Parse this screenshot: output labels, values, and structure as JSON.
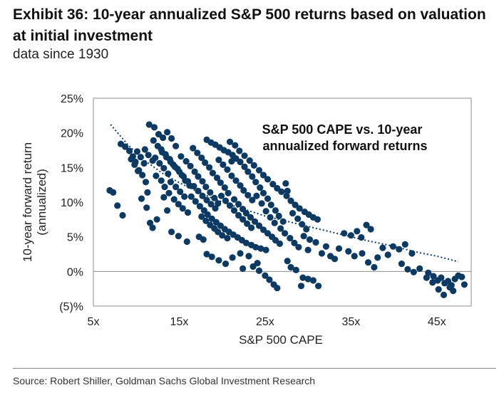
{
  "header": {
    "title": "Exhibit 36: 10-year annualized S&P 500 returns based on valuation at initial investment",
    "subtitle": "data since 1930"
  },
  "footer": {
    "source": "Source: Robert Shiller, Goldman Sachs Global Investment Research"
  },
  "colors": {
    "points": "#0d3a63",
    "trendline": "#0d3a63",
    "axis": "#7f7f7f",
    "zero_line": "#7f7f7f"
  },
  "chart_data": {
    "type": "scatter",
    "title": "",
    "annotation": [
      "S&P 500 CAPE vs. 10-year",
      "annualized forward returns"
    ],
    "xlabel": "S&P 500 CAPE",
    "ylabel": [
      "10-year forward return",
      "(annualized)"
    ],
    "xlim": [
      5,
      49
    ],
    "ylim": [
      -5,
      25
    ],
    "x_ticks": [
      5,
      15,
      25,
      35,
      45
    ],
    "x_tick_labels": [
      "5x",
      "15x",
      "25x",
      "35x",
      "45x"
    ],
    "y_ticks": [
      -5,
      0,
      5,
      10,
      15,
      20,
      25
    ],
    "y_tick_labels": [
      "(5)%",
      "0%",
      "5%",
      "10%",
      "15%",
      "20%",
      "25%"
    ],
    "grid": false,
    "legend": "none",
    "trendline": {
      "style": "dotted",
      "x": [
        7.0,
        9,
        11,
        13,
        15,
        17,
        19,
        21,
        23,
        25,
        27,
        29,
        31,
        33,
        35,
        37,
        39,
        41,
        43,
        45,
        47.5
      ],
      "y": [
        21.2,
        18.3,
        16.0,
        14.2,
        12.8,
        11.6,
        10.5,
        9.6,
        8.8,
        8.0,
        7.4,
        6.8,
        6.2,
        5.6,
        5.0,
        4.4,
        3.9,
        3.3,
        2.7,
        2.2,
        1.4
      ]
    },
    "series": [
      {
        "points": [
          [
            6.9,
            11.7
          ],
          [
            7.3,
            11.4
          ],
          [
            7.8,
            9.5
          ],
          [
            8.4,
            8.1
          ],
          [
            8.2,
            18.4
          ],
          [
            8.7,
            18.0
          ],
          [
            9.2,
            17.4
          ],
          [
            9.6,
            16.6
          ],
          [
            9.9,
            15.8
          ],
          [
            10.3,
            14.6
          ],
          [
            10.7,
            13.9
          ],
          [
            11.1,
            12.9
          ],
          [
            11.3,
            11.4
          ],
          [
            10.6,
            10.5
          ],
          [
            11.2,
            9.2
          ],
          [
            11.6,
            7.0
          ],
          [
            11.9,
            6.3
          ],
          [
            12.4,
            7.5
          ],
          [
            11.5,
            21.2
          ],
          [
            12.1,
            20.8
          ],
          [
            12.6,
            19.8
          ],
          [
            13.1,
            19.3
          ],
          [
            13.6,
            20.1
          ],
          [
            14.1,
            19.2
          ],
          [
            14.6,
            18.1
          ],
          [
            12.9,
            17.6
          ],
          [
            13.4,
            16.9
          ],
          [
            13.9,
            16.2
          ],
          [
            14.3,
            15.4
          ],
          [
            14.8,
            14.8
          ],
          [
            15.3,
            13.9
          ],
          [
            15.7,
            13.1
          ],
          [
            16.2,
            12.4
          ],
          [
            12.2,
            16.4
          ],
          [
            12.7,
            15.6
          ],
          [
            13.2,
            14.9
          ],
          [
            13.7,
            14.1
          ],
          [
            12.3,
            13.8
          ],
          [
            12.9,
            13.1
          ],
          [
            13.3,
            12.2
          ],
          [
            13.8,
            11.3
          ],
          [
            14.4,
            10.4
          ],
          [
            14.9,
            9.7
          ],
          [
            15.4,
            9.1
          ],
          [
            16.0,
            8.5
          ],
          [
            13.6,
            8.8
          ],
          [
            14.1,
            5.7
          ],
          [
            14.9,
            5.1
          ],
          [
            15.9,
            4.3
          ],
          [
            15.2,
            16.6
          ],
          [
            15.8,
            15.9
          ],
          [
            16.3,
            15.2
          ],
          [
            16.8,
            14.4
          ],
          [
            17.2,
            13.7
          ],
          [
            17.7,
            13.0
          ],
          [
            18.1,
            12.2
          ],
          [
            18.6,
            11.4
          ],
          [
            19.1,
            10.6
          ],
          [
            19.5,
            9.8
          ],
          [
            16.6,
            17.8
          ],
          [
            17.1,
            17.1
          ],
          [
            17.6,
            16.4
          ],
          [
            18.0,
            15.7
          ],
          [
            18.5,
            15.0
          ],
          [
            18.9,
            14.2
          ],
          [
            19.4,
            13.5
          ],
          [
            19.8,
            12.8
          ],
          [
            20.3,
            12.1
          ],
          [
            20.7,
            11.3
          ],
          [
            18.2,
            19.0
          ],
          [
            18.7,
            18.6
          ],
          [
            19.2,
            18.3
          ],
          [
            19.7,
            17.9
          ],
          [
            20.2,
            17.5
          ],
          [
            20.7,
            17.2
          ],
          [
            21.2,
            16.8
          ],
          [
            21.6,
            16.3
          ],
          [
            22.1,
            15.8
          ],
          [
            22.6,
            15.1
          ],
          [
            23.0,
            14.4
          ],
          [
            23.5,
            13.7
          ],
          [
            23.9,
            12.9
          ],
          [
            24.4,
            12.1
          ],
          [
            24.8,
            11.3
          ],
          [
            25.3,
            10.5
          ],
          [
            25.7,
            9.6
          ],
          [
            26.2,
            8.8
          ],
          [
            26.6,
            8.0
          ],
          [
            27.1,
            7.2
          ],
          [
            20.9,
            18.7
          ],
          [
            21.5,
            18.2
          ],
          [
            22.0,
            17.4
          ],
          [
            22.6,
            16.7
          ],
          [
            23.2,
            16.0
          ],
          [
            23.7,
            15.3
          ],
          [
            24.3,
            14.6
          ],
          [
            24.8,
            13.9
          ],
          [
            25.3,
            13.3
          ],
          [
            25.9,
            12.6
          ],
          [
            26.4,
            12.0
          ],
          [
            26.9,
            11.5
          ],
          [
            27.5,
            10.9
          ],
          [
            28.0,
            10.2
          ],
          [
            28.5,
            9.6
          ],
          [
            29.0,
            9.1
          ],
          [
            29.6,
            8.6
          ],
          [
            30.1,
            8.2
          ],
          [
            30.6,
            7.8
          ],
          [
            31.1,
            7.5
          ],
          [
            27.4,
            12.7
          ],
          [
            27.6,
            11.6
          ],
          [
            28.2,
            8.4
          ],
          [
            28.8,
            7.6
          ],
          [
            29.3,
            6.8
          ],
          [
            29.8,
            6.1
          ],
          [
            16.4,
            10.8
          ],
          [
            16.9,
            10.1
          ],
          [
            17.4,
            9.4
          ],
          [
            17.9,
            8.8
          ],
          [
            18.3,
            8.2
          ],
          [
            18.8,
            7.6
          ],
          [
            19.3,
            7.1
          ],
          [
            19.8,
            6.6
          ],
          [
            20.3,
            6.1
          ],
          [
            20.8,
            5.7
          ],
          [
            21.3,
            5.3
          ],
          [
            21.8,
            4.9
          ],
          [
            22.3,
            4.5
          ],
          [
            22.8,
            4.1
          ],
          [
            23.4,
            3.8
          ],
          [
            23.9,
            3.5
          ],
          [
            24.5,
            3.3
          ],
          [
            25.1,
            3.1
          ],
          [
            17.6,
            7.9
          ],
          [
            18.1,
            7.3
          ],
          [
            18.6,
            6.7
          ],
          [
            19.1,
            6.2
          ],
          [
            19.5,
            5.7
          ],
          [
            20.0,
            5.2
          ],
          [
            20.6,
            4.8
          ],
          [
            17.3,
            5.0
          ],
          [
            17.8,
            4.6
          ],
          [
            18.2,
            2.5
          ],
          [
            18.8,
            2.1
          ],
          [
            19.6,
            1.6
          ],
          [
            20.4,
            1.1
          ],
          [
            21.2,
            2.0
          ],
          [
            22.1,
            2.6
          ],
          [
            23.1,
            2.2
          ],
          [
            24.1,
            1.2
          ],
          [
            25.0,
            -0.6
          ],
          [
            25.5,
            -1.2
          ],
          [
            26.0,
            -1.9
          ],
          [
            26.4,
            -2.4
          ],
          [
            23.6,
            0.7
          ],
          [
            24.3,
            0.1
          ],
          [
            22.4,
            0.4
          ],
          [
            27.6,
            1.5
          ],
          [
            28.0,
            0.6
          ],
          [
            28.6,
            0.2
          ],
          [
            29.4,
            -0.9
          ],
          [
            30.0,
            -1.1
          ],
          [
            29.2,
            -2.1
          ],
          [
            30.6,
            -1.3
          ],
          [
            31.2,
            -2.1
          ],
          [
            30.0,
            3.1
          ],
          [
            30.9,
            4.2
          ],
          [
            31.6,
            2.6
          ],
          [
            32.1,
            3.6
          ],
          [
            32.6,
            2.2
          ],
          [
            33.1,
            1.8
          ],
          [
            33.6,
            3.3
          ],
          [
            34.2,
            5.5
          ],
          [
            35.0,
            5.2
          ],
          [
            35.7,
            5.8
          ],
          [
            36.2,
            4.9
          ],
          [
            36.8,
            6.7
          ],
          [
            37.3,
            6.1
          ],
          [
            34.7,
            2.9
          ],
          [
            35.4,
            2.2
          ],
          [
            36.3,
            2.6
          ],
          [
            37.0,
            1.3
          ],
          [
            38.1,
            2.0
          ],
          [
            37.7,
            0.6
          ],
          [
            38.7,
            3.4
          ],
          [
            39.3,
            2.4
          ],
          [
            39.9,
            3.6
          ],
          [
            40.6,
            3.2
          ],
          [
            41.3,
            3.9
          ],
          [
            42.1,
            2.6
          ],
          [
            40.9,
            1.1
          ],
          [
            41.6,
            0.3
          ],
          [
            42.3,
            -0.1
          ],
          [
            43.0,
            0.4
          ],
          [
            44.0,
            -0.2
          ],
          [
            44.6,
            -0.7
          ],
          [
            45.1,
            -1.3
          ],
          [
            45.5,
            -0.9
          ],
          [
            45.9,
            -1.7
          ],
          [
            46.3,
            -1.4
          ],
          [
            46.7,
            -2.0
          ],
          [
            47.1,
            -1.1
          ],
          [
            47.5,
            -0.6
          ],
          [
            47.9,
            -0.8
          ],
          [
            48.2,
            -1.9
          ],
          [
            44.5,
            -1.6
          ],
          [
            45.2,
            -2.6
          ],
          [
            45.8,
            -3.4
          ],
          [
            46.5,
            -2.3
          ],
          [
            46.9,
            -2.8
          ],
          [
            43.8,
            -0.9
          ],
          [
            12.0,
            18.9
          ],
          [
            12.5,
            18.1
          ],
          [
            13.0,
            17.2
          ],
          [
            13.5,
            16.5
          ],
          [
            14.0,
            15.8
          ],
          [
            14.5,
            15.1
          ],
          [
            15.0,
            14.4
          ],
          [
            15.5,
            13.7
          ],
          [
            16.0,
            13.0
          ],
          [
            11.0,
            17.6
          ],
          [
            11.4,
            16.8
          ],
          [
            11.9,
            16.0
          ],
          [
            10.1,
            17.3
          ],
          [
            10.5,
            16.5
          ],
          [
            10.9,
            15.6
          ],
          [
            9.4,
            16.2
          ],
          [
            9.8,
            15.4
          ],
          [
            10.2,
            14.5
          ],
          [
            21.1,
            13.8
          ],
          [
            21.6,
            13.1
          ],
          [
            22.1,
            12.4
          ],
          [
            22.5,
            11.7
          ],
          [
            23.0,
            11.0
          ],
          [
            23.5,
            10.3
          ],
          [
            21.4,
            10.4
          ],
          [
            21.9,
            9.7
          ],
          [
            22.4,
            9.0
          ],
          [
            22.8,
            8.4
          ],
          [
            23.3,
            7.8
          ],
          [
            23.8,
            7.2
          ],
          [
            24.3,
            6.6
          ],
          [
            24.8,
            6.0
          ],
          [
            25.3,
            5.5
          ],
          [
            25.8,
            5.0
          ],
          [
            26.2,
            4.5
          ],
          [
            26.7,
            4.0
          ],
          [
            19.6,
            16.1
          ],
          [
            20.1,
            15.4
          ],
          [
            20.6,
            14.7
          ],
          [
            21.1,
            15.9
          ],
          [
            19.9,
            10.9
          ],
          [
            20.4,
            10.2
          ],
          [
            20.9,
            9.5
          ],
          [
            21.4,
            8.8
          ],
          [
            21.9,
            8.1
          ],
          [
            22.4,
            7.5
          ],
          [
            22.9,
            6.9
          ],
          [
            23.4,
            6.3
          ],
          [
            24.0,
            10.9
          ],
          [
            24.6,
            9.8
          ],
          [
            25.1,
            8.7
          ],
          [
            25.6,
            7.8
          ],
          [
            26.1,
            7.0
          ],
          [
            26.8,
            6.2
          ],
          [
            27.3,
            5.5
          ],
          [
            27.9,
            4.8
          ],
          [
            28.4,
            4.1
          ],
          [
            28.9,
            3.5
          ],
          [
            29.5,
            5.1
          ],
          [
            30.2,
            4.6
          ],
          [
            16.7,
            12.3
          ],
          [
            17.2,
            11.6
          ],
          [
            17.7,
            10.9
          ],
          [
            18.2,
            10.3
          ],
          [
            18.7,
            9.7
          ],
          [
            19.2,
            9.1
          ],
          [
            14.6,
            12.2
          ],
          [
            15.1,
            11.5
          ],
          [
            15.6,
            10.8
          ],
          [
            13.2,
            10.7
          ],
          [
            14.0,
            12.9
          ]
        ]
      }
    ]
  }
}
